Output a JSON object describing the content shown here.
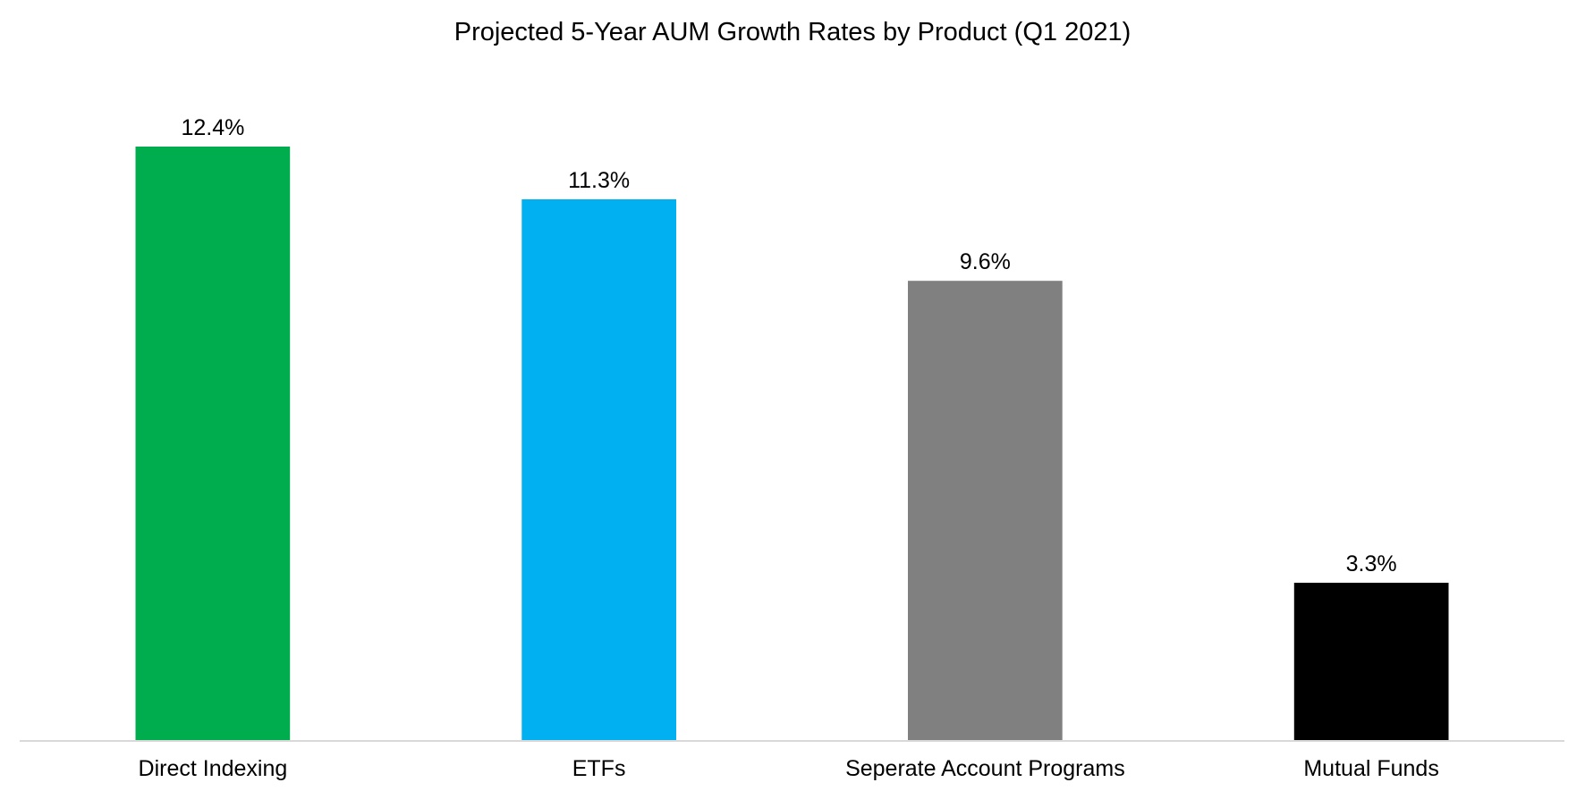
{
  "chart_data": {
    "type": "bar",
    "title": "Projected 5-Year AUM Growth Rates by Product (Q1 2021)",
    "xlabel": "",
    "ylabel": "",
    "categories": [
      "Direct Indexing",
      "ETFs",
      "Seperate Account Programs",
      "Mutual Funds"
    ],
    "values": [
      12.4,
      11.3,
      9.6,
      3.3
    ],
    "value_labels": [
      "12.4%",
      "11.3%",
      "9.6%",
      "3.3%"
    ],
    "colors": [
      "#00AD4E",
      "#00B0F0",
      "#808080",
      "#000000"
    ],
    "ylim": [
      0,
      12.4
    ],
    "grid": false,
    "legend": "none",
    "y_axis_visible": false
  },
  "colors": {
    "background": "#FFFFFF",
    "axis_line": "#D9D9D9",
    "text": "#000000"
  }
}
